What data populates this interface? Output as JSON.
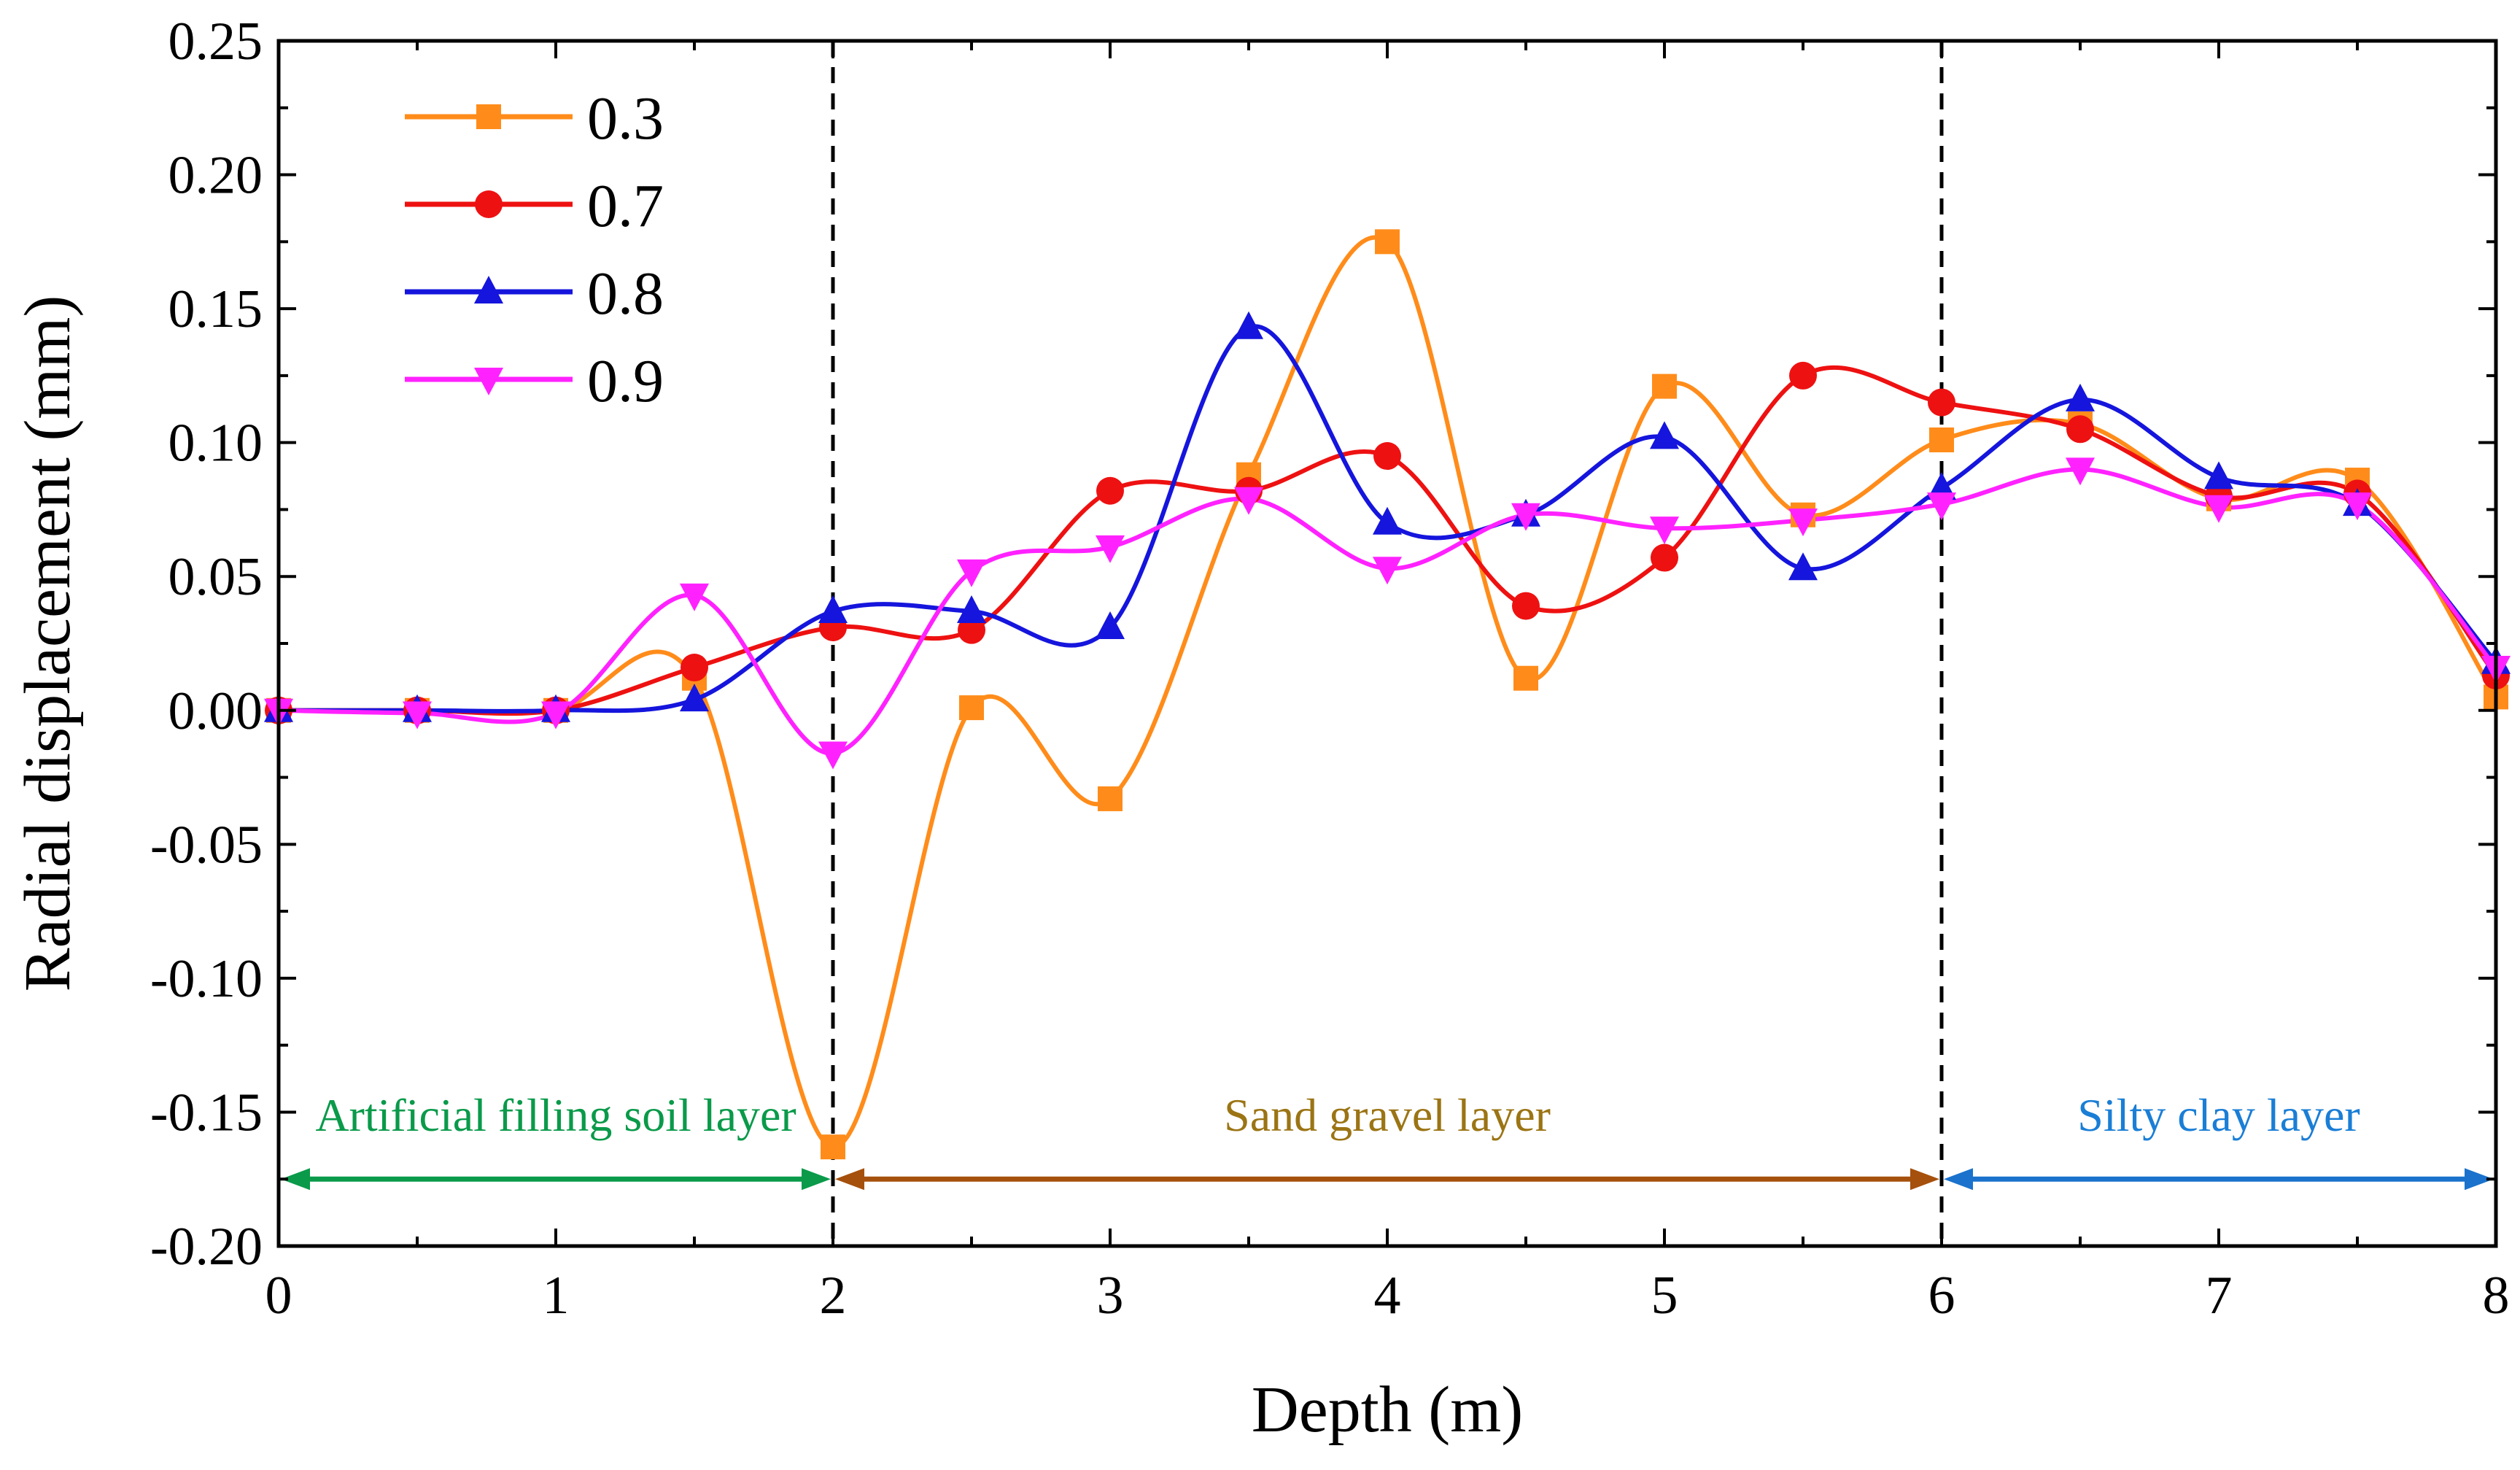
{
  "chart_data": {
    "type": "line",
    "title": "",
    "xlabel": "Depth (m)",
    "ylabel": "Radial displacement (mm)",
    "xlim": [
      0,
      8
    ],
    "ylim": [
      -0.2,
      0.25
    ],
    "xticks": [
      {
        "value": 0,
        "label": "0"
      },
      {
        "value": 1,
        "label": "1"
      },
      {
        "value": 2,
        "label": "2"
      },
      {
        "value": 3,
        "label": "3"
      },
      {
        "value": 4,
        "label": "4"
      },
      {
        "value": 5,
        "label": "5"
      },
      {
        "value": 6,
        "label": "6"
      },
      {
        "value": 7,
        "label": "7"
      },
      {
        "value": 8,
        "label": "8"
      }
    ],
    "yticks": [
      {
        "value": -0.2,
        "label": "-0.20"
      },
      {
        "value": -0.15,
        "label": "-0.15"
      },
      {
        "value": -0.1,
        "label": "-0.10"
      },
      {
        "value": -0.05,
        "label": "-0.05"
      },
      {
        "value": 0,
        "label": "0.00"
      },
      {
        "value": 0.05,
        "label": "0.05"
      },
      {
        "value": 0.1,
        "label": "0.10"
      },
      {
        "value": 0.15,
        "label": "0.15"
      },
      {
        "value": 0.2,
        "label": "0.20"
      },
      {
        "value": 0.25,
        "label": "0.25"
      }
    ],
    "grid": false,
    "legend_position": "top-left",
    "x": [
      0,
      0.5,
      1,
      1.5,
      2,
      2.5,
      3,
      3.5,
      4,
      4.5,
      5,
      5.5,
      6,
      6.5,
      7,
      7.5,
      8
    ],
    "series": [
      {
        "name": "0.3",
        "color": "#ff8c1a",
        "marker": "square",
        "values": [
          0.0,
          0.0,
          0.0,
          0.012,
          -0.163,
          0.001,
          -0.033,
          0.088,
          0.175,
          0.012,
          0.121,
          0.073,
          0.101,
          0.107,
          0.079,
          0.086,
          0.005
        ]
      },
      {
        "name": "0.7",
        "color": "#ee1111",
        "marker": "circle",
        "values": [
          0.0,
          0.0,
          0.0,
          0.016,
          0.031,
          0.03,
          0.082,
          0.082,
          0.095,
          0.039,
          0.057,
          0.125,
          0.115,
          0.105,
          0.08,
          0.081,
          0.013
        ]
      },
      {
        "name": "0.8",
        "color": "#1515dd",
        "marker": "triangle-up",
        "values": [
          0.0,
          0.0,
          0.0,
          0.004,
          0.037,
          0.037,
          0.031,
          0.143,
          0.07,
          0.073,
          0.102,
          0.053,
          0.083,
          0.116,
          0.087,
          0.077,
          0.018
        ]
      },
      {
        "name": "0.9",
        "color": "#ff22ff",
        "marker": "triangle-down",
        "values": [
          0.0,
          -0.001,
          -0.001,
          0.043,
          -0.016,
          0.052,
          0.061,
          0.079,
          0.053,
          0.073,
          0.068,
          0.071,
          0.077,
          0.09,
          0.076,
          0.077,
          0.016
        ]
      }
    ],
    "layer_boundaries": [
      2,
      6
    ],
    "layers": [
      {
        "label": "Artificial filling soil layer",
        "from": 0,
        "to": 2,
        "y": -0.175,
        "color": "#0a9a4a"
      },
      {
        "label": "Sand gravel layer",
        "from": 2,
        "to": 6,
        "y": -0.175,
        "color": "#a5500c",
        "text_color": "#9b7414"
      },
      {
        "label": "Silty clay layer",
        "from": 6,
        "to": 8,
        "y": -0.175,
        "color": "#1a72cc",
        "text_color": "#1a7ed6"
      }
    ]
  }
}
